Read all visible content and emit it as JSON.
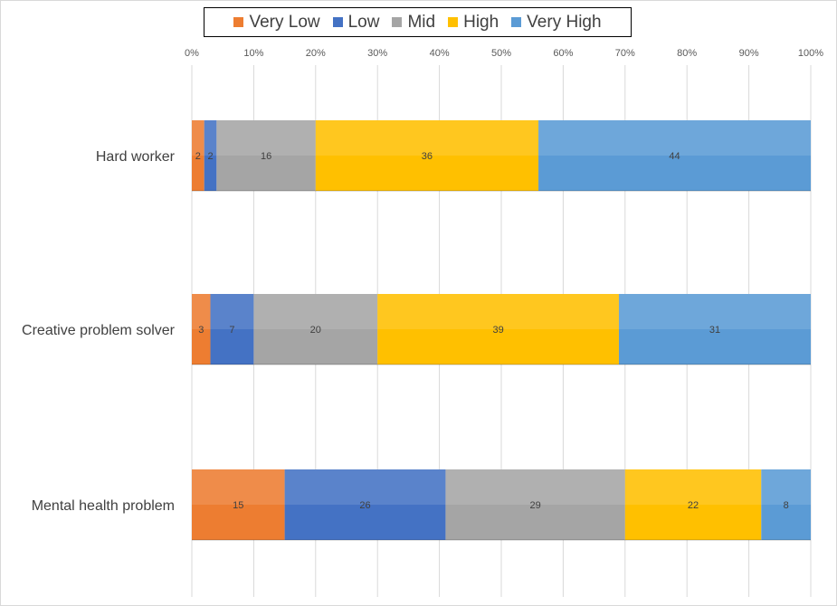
{
  "chart_data": {
    "type": "bar",
    "orientation": "horizontal",
    "stacked": "100%",
    "categories": [
      "Hard worker",
      "Creative problem solver",
      "Mental health problem"
    ],
    "series": [
      {
        "name": "Very Low",
        "color": "#ED7D31",
        "values": [
          2,
          3,
          15
        ]
      },
      {
        "name": "Low",
        "color": "#4472C4",
        "values": [
          2,
          7,
          26
        ]
      },
      {
        "name": "Mid",
        "color": "#A5A5A5",
        "values": [
          16,
          20,
          29
        ]
      },
      {
        "name": "High",
        "color": "#FFC000",
        "values": [
          36,
          39,
          22
        ]
      },
      {
        "name": "Very High",
        "color": "#5B9BD5",
        "values": [
          44,
          31,
          8
        ]
      }
    ],
    "xlim": [
      0,
      100
    ],
    "x_ticks": [
      "0%",
      "10%",
      "20%",
      "30%",
      "40%",
      "50%",
      "60%",
      "70%",
      "80%",
      "90%",
      "100%"
    ],
    "grid": true,
    "legend_position": "top",
    "data_labels": true
  }
}
